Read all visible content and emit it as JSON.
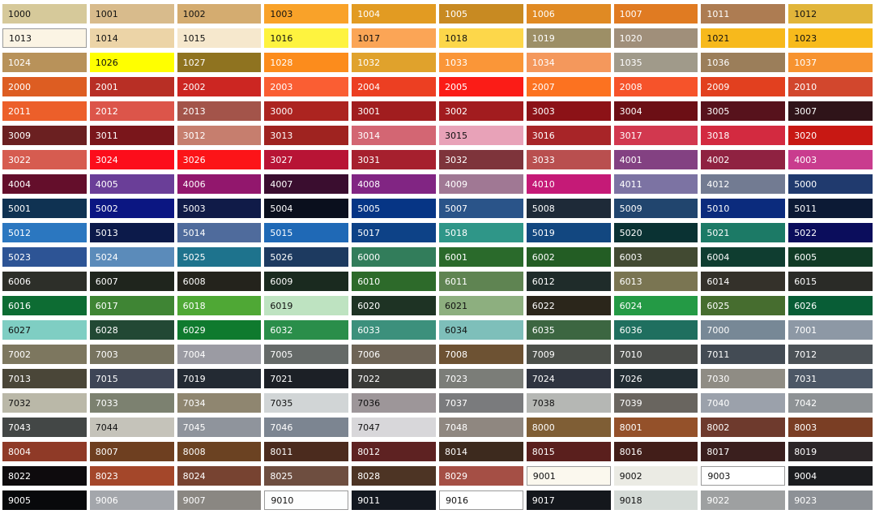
{
  "swatches": [
    {
      "code": "1000",
      "color": "#d6c99a",
      "text": "dark"
    },
    {
      "code": "1001",
      "color": "#d8bb8c",
      "text": "dark"
    },
    {
      "code": "1002",
      "color": "#d4ac70",
      "text": "dark"
    },
    {
      "code": "1003",
      "color": "#f9a229",
      "text": "dark"
    },
    {
      "code": "1004",
      "color": "#e29b22",
      "text": "light"
    },
    {
      "code": "1005",
      "color": "#c88a22",
      "text": "light"
    },
    {
      "code": "1006",
      "color": "#e08a23",
      "text": "light"
    },
    {
      "code": "1007",
      "color": "#e07b22",
      "text": "light"
    },
    {
      "code": "1011",
      "color": "#ad7c52",
      "text": "light"
    },
    {
      "code": "1012",
      "color": "#e1b53a",
      "text": "dark"
    },
    {
      "code": "1013",
      "color": "#fbf4e4",
      "text": "dark",
      "border": true
    },
    {
      "code": "1014",
      "color": "#ecd4a7",
      "text": "dark"
    },
    {
      "code": "1015",
      "color": "#f6e8cd",
      "text": "dark"
    },
    {
      "code": "1016",
      "color": "#fef33f",
      "text": "dark"
    },
    {
      "code": "1017",
      "color": "#fba556",
      "text": "dark"
    },
    {
      "code": "1018",
      "color": "#fdd74a",
      "text": "dark"
    },
    {
      "code": "1019",
      "color": "#9d8f66",
      "text": "light"
    },
    {
      "code": "1020",
      "color": "#a08f7a",
      "text": "light"
    },
    {
      "code": "1021",
      "color": "#f7b91c",
      "text": "dark"
    },
    {
      "code": "1023",
      "color": "#f8bb1c",
      "text": "dark"
    },
    {
      "code": "1024",
      "color": "#b8925a",
      "text": "light"
    },
    {
      "code": "1026",
      "color": "#ffff00",
      "text": "dark"
    },
    {
      "code": "1027",
      "color": "#8f7320",
      "text": "light"
    },
    {
      "code": "1028",
      "color": "#fc8c1c",
      "text": "light"
    },
    {
      "code": "1032",
      "color": "#e0a22c",
      "text": "light"
    },
    {
      "code": "1033",
      "color": "#fa9638",
      "text": "light"
    },
    {
      "code": "1034",
      "color": "#f4985c",
      "text": "light"
    },
    {
      "code": "1035",
      "color": "#a09a8a",
      "text": "light"
    },
    {
      "code": "1036",
      "color": "#9b7e5a",
      "text": "light"
    },
    {
      "code": "1037",
      "color": "#f79330",
      "text": "light"
    },
    {
      "code": "2000",
      "color": "#dd5d22",
      "text": "light"
    },
    {
      "code": "2001",
      "color": "#b82f25",
      "text": "light"
    },
    {
      "code": "2002",
      "color": "#cc2622",
      "text": "light"
    },
    {
      "code": "2003",
      "color": "#fa5e33",
      "text": "light"
    },
    {
      "code": "2004",
      "color": "#ec3f22",
      "text": "light"
    },
    {
      "code": "2005",
      "color": "#fb1c17",
      "text": "light"
    },
    {
      "code": "2007",
      "color": "#fc7220",
      "text": "light"
    },
    {
      "code": "2008",
      "color": "#f6532a",
      "text": "light"
    },
    {
      "code": "2009",
      "color": "#e2401f",
      "text": "light"
    },
    {
      "code": "2010",
      "color": "#d2472d",
      "text": "light"
    },
    {
      "code": "2011",
      "color": "#ec5f2a",
      "text": "light"
    },
    {
      "code": "2012",
      "color": "#dc554a",
      "text": "light"
    },
    {
      "code": "2013",
      "color": "#a3544a",
      "text": "light"
    },
    {
      "code": "3000",
      "color": "#ac2420",
      "text": "light"
    },
    {
      "code": "3001",
      "color": "#a11d1f",
      "text": "light"
    },
    {
      "code": "3002",
      "color": "#a21c1f",
      "text": "light"
    },
    {
      "code": "3003",
      "color": "#8c1217",
      "text": "light"
    },
    {
      "code": "3004",
      "color": "#6c0f15",
      "text": "light"
    },
    {
      "code": "3005",
      "color": "#57121c",
      "text": "light"
    },
    {
      "code": "3007",
      "color": "#2f1419",
      "text": "light"
    },
    {
      "code": "3009",
      "color": "#6b2021",
      "text": "light"
    },
    {
      "code": "3011",
      "color": "#7a161b",
      "text": "light"
    },
    {
      "code": "3012",
      "color": "#c67e6e",
      "text": "light"
    },
    {
      "code": "3013",
      "color": "#9f2320",
      "text": "light"
    },
    {
      "code": "3014",
      "color": "#d36673",
      "text": "light"
    },
    {
      "code": "3015",
      "color": "#e8a2b8",
      "text": "dark"
    },
    {
      "code": "3016",
      "color": "#a82528",
      "text": "light"
    },
    {
      "code": "3017",
      "color": "#d2384f",
      "text": "light"
    },
    {
      "code": "3018",
      "color": "#d32a40",
      "text": "light"
    },
    {
      "code": "3020",
      "color": "#c81813",
      "text": "light"
    },
    {
      "code": "3022",
      "color": "#d65c50",
      "text": "light"
    },
    {
      "code": "3024",
      "color": "#fc0d1b",
      "text": "light"
    },
    {
      "code": "3026",
      "color": "#fc1418",
      "text": "light"
    },
    {
      "code": "3027",
      "color": "#b81435",
      "text": "light"
    },
    {
      "code": "3031",
      "color": "#a6202e",
      "text": "light"
    },
    {
      "code": "3032",
      "color": "#7e343b",
      "text": "light"
    },
    {
      "code": "3033",
      "color": "#b94f4f",
      "text": "light"
    },
    {
      "code": "4001",
      "color": "#834182",
      "text": "light"
    },
    {
      "code": "4002",
      "color": "#8f2241",
      "text": "light"
    },
    {
      "code": "4003",
      "color": "#c93c8e",
      "text": "light"
    },
    {
      "code": "4004",
      "color": "#640e2b",
      "text": "light"
    },
    {
      "code": "4005",
      "color": "#6a3e98",
      "text": "light"
    },
    {
      "code": "4006",
      "color": "#92176d",
      "text": "light"
    },
    {
      "code": "4007",
      "color": "#3a0d2f",
      "text": "light"
    },
    {
      "code": "4008",
      "color": "#812583",
      "text": "light"
    },
    {
      "code": "4009",
      "color": "#a07894",
      "text": "light"
    },
    {
      "code": "4010",
      "color": "#c51a77",
      "text": "light"
    },
    {
      "code": "4011",
      "color": "#7c73a3",
      "text": "light"
    },
    {
      "code": "4012",
      "color": "#727b92",
      "text": "light"
    },
    {
      "code": "5000",
      "color": "#203a6e",
      "text": "light"
    },
    {
      "code": "5001",
      "color": "#0f3252",
      "text": "light"
    },
    {
      "code": "5002",
      "color": "#0b1682",
      "text": "light"
    },
    {
      "code": "5003",
      "color": "#101b48",
      "text": "light"
    },
    {
      "code": "5004",
      "color": "#0a0f1d",
      "text": "light"
    },
    {
      "code": "5005",
      "color": "#063585",
      "text": "light"
    },
    {
      "code": "5007",
      "color": "#2a5489",
      "text": "light"
    },
    {
      "code": "5008",
      "color": "#1e2a38",
      "text": "light"
    },
    {
      "code": "5009",
      "color": "#21456e",
      "text": "light"
    },
    {
      "code": "5010",
      "color": "#0b2b7d",
      "text": "light"
    },
    {
      "code": "5011",
      "color": "#0c1a35",
      "text": "light"
    },
    {
      "code": "5012",
      "color": "#2b77c0",
      "text": "light"
    },
    {
      "code": "5013",
      "color": "#0c1a4a",
      "text": "light"
    },
    {
      "code": "5014",
      "color": "#4f6b9c",
      "text": "light"
    },
    {
      "code": "5015",
      "color": "#1f69b6",
      "text": "light"
    },
    {
      "code": "5017",
      "color": "#0d4287",
      "text": "light"
    },
    {
      "code": "5018",
      "color": "#2f9688",
      "text": "light"
    },
    {
      "code": "5019",
      "color": "#124780",
      "text": "light"
    },
    {
      "code": "5020",
      "color": "#0a3233",
      "text": "light"
    },
    {
      "code": "5021",
      "color": "#1c7a66",
      "text": "light"
    },
    {
      "code": "5022",
      "color": "#0b0d5c",
      "text": "light"
    },
    {
      "code": "5023",
      "color": "#2d5495",
      "text": "light"
    },
    {
      "code": "5024",
      "color": "#5b8bba",
      "text": "light"
    },
    {
      "code": "5025",
      "color": "#1e738d",
      "text": "light"
    },
    {
      "code": "5026",
      "color": "#1d3a60",
      "text": "light"
    },
    {
      "code": "6000",
      "color": "#327d5b",
      "text": "light"
    },
    {
      "code": "6001",
      "color": "#2a6a2b",
      "text": "light"
    },
    {
      "code": "6002",
      "color": "#235d24",
      "text": "light"
    },
    {
      "code": "6003",
      "color": "#424a32",
      "text": "light"
    },
    {
      "code": "6004",
      "color": "#0f3d30",
      "text": "light"
    },
    {
      "code": "6005",
      "color": "#113b26",
      "text": "light"
    },
    {
      "code": "6006",
      "color": "#2d2f29",
      "text": "light"
    },
    {
      "code": "6007",
      "color": "#1f251d",
      "text": "light"
    },
    {
      "code": "6008",
      "color": "#24231c",
      "text": "light"
    },
    {
      "code": "6009",
      "color": "#1a2a1f",
      "text": "light"
    },
    {
      "code": "6010",
      "color": "#2d6a2a",
      "text": "light"
    },
    {
      "code": "6011",
      "color": "#5f8452",
      "text": "light"
    },
    {
      "code": "6012",
      "color": "#1f2c2a",
      "text": "light"
    },
    {
      "code": "6013",
      "color": "#7a7552",
      "text": "light"
    },
    {
      "code": "6014",
      "color": "#34312a",
      "text": "light"
    },
    {
      "code": "6015",
      "color": "#2a2b27",
      "text": "light"
    },
    {
      "code": "6016",
      "color": "#0d6c33",
      "text": "light"
    },
    {
      "code": "6017",
      "color": "#3f8534",
      "text": "light"
    },
    {
      "code": "6018",
      "color": "#4fa835",
      "text": "light"
    },
    {
      "code": "6019",
      "color": "#bee3c1",
      "text": "dark"
    },
    {
      "code": "6020",
      "color": "#1e3324",
      "text": "light"
    },
    {
      "code": "6021",
      "color": "#8daf7f",
      "text": "dark"
    },
    {
      "code": "6022",
      "color": "#2b261b",
      "text": "light"
    },
    {
      "code": "6024",
      "color": "#249a45",
      "text": "light"
    },
    {
      "code": "6025",
      "color": "#466d2f",
      "text": "light"
    },
    {
      "code": "6026",
      "color": "#085d36",
      "text": "light"
    },
    {
      "code": "6027",
      "color": "#7fcec3",
      "text": "dark"
    },
    {
      "code": "6028",
      "color": "#224834",
      "text": "light"
    },
    {
      "code": "6029",
      "color": "#0f7a2e",
      "text": "light"
    },
    {
      "code": "6032",
      "color": "#2a8e4a",
      "text": "light"
    },
    {
      "code": "6033",
      "color": "#3c907c",
      "text": "light"
    },
    {
      "code": "6034",
      "color": "#7ebfba",
      "text": "dark"
    },
    {
      "code": "6035",
      "color": "#3c6641",
      "text": "light"
    },
    {
      "code": "6036",
      "color": "#1f6f5f",
      "text": "light"
    },
    {
      "code": "7000",
      "color": "#778896",
      "text": "light"
    },
    {
      "code": "7001",
      "color": "#8d98a5",
      "text": "light"
    },
    {
      "code": "7002",
      "color": "#7d775f",
      "text": "light"
    },
    {
      "code": "7003",
      "color": "#77735f",
      "text": "light"
    },
    {
      "code": "7004",
      "color": "#9b9ba3",
      "text": "light"
    },
    {
      "code": "7005",
      "color": "#656a68",
      "text": "light"
    },
    {
      "code": "7006",
      "color": "#6e6456",
      "text": "light"
    },
    {
      "code": "7008",
      "color": "#6d5233",
      "text": "light"
    },
    {
      "code": "7009",
      "color": "#4c504a",
      "text": "light"
    },
    {
      "code": "7010",
      "color": "#4b4d4a",
      "text": "light"
    },
    {
      "code": "7011",
      "color": "#434b54",
      "text": "light"
    },
    {
      "code": "7012",
      "color": "#4c5257",
      "text": "light"
    },
    {
      "code": "7013",
      "color": "#4a4638",
      "text": "light"
    },
    {
      "code": "7015",
      "color": "#3e4556",
      "text": "light"
    },
    {
      "code": "7019",
      "color": "#232a33",
      "text": "light"
    },
    {
      "code": "7021",
      "color": "#1c2026",
      "text": "light"
    },
    {
      "code": "7022",
      "color": "#393a37",
      "text": "light"
    },
    {
      "code": "7023",
      "color": "#7b7d78",
      "text": "light"
    },
    {
      "code": "7024",
      "color": "#2f3440",
      "text": "light"
    },
    {
      "code": "7026",
      "color": "#222d33",
      "text": "light"
    },
    {
      "code": "7030",
      "color": "#8f8c84",
      "text": "light"
    },
    {
      "code": "7031",
      "color": "#4c5766",
      "text": "light"
    },
    {
      "code": "7032",
      "color": "#bab8a8",
      "text": "dark"
    },
    {
      "code": "7033",
      "color": "#7c8170",
      "text": "light"
    },
    {
      "code": "7034",
      "color": "#8f8670",
      "text": "light"
    },
    {
      "code": "7035",
      "color": "#d1d5d6",
      "text": "dark"
    },
    {
      "code": "7036",
      "color": "#9d9699",
      "text": "dark"
    },
    {
      "code": "7037",
      "color": "#7a7b7d",
      "text": "light"
    },
    {
      "code": "7038",
      "color": "#b5b7b4",
      "text": "dark"
    },
    {
      "code": "7039",
      "color": "#69655f",
      "text": "light"
    },
    {
      "code": "7040",
      "color": "#9ba1ab",
      "text": "light"
    },
    {
      "code": "7042",
      "color": "#8e9295",
      "text": "light"
    },
    {
      "code": "7043",
      "color": "#434746",
      "text": "light"
    },
    {
      "code": "7044",
      "color": "#c5c3ba",
      "text": "dark"
    },
    {
      "code": "7045",
      "color": "#8f949c",
      "text": "light"
    },
    {
      "code": "7046",
      "color": "#7c8591",
      "text": "light"
    },
    {
      "code": "7047",
      "color": "#d8d7da",
      "text": "dark"
    },
    {
      "code": "7048",
      "color": "#8f8780",
      "text": "light"
    },
    {
      "code": "8000",
      "color": "#7f5e35",
      "text": "light"
    },
    {
      "code": "8001",
      "color": "#94512a",
      "text": "light"
    },
    {
      "code": "8002",
      "color": "#6e3a2d",
      "text": "light"
    },
    {
      "code": "8003",
      "color": "#7a3e24",
      "text": "light"
    },
    {
      "code": "8004",
      "color": "#8f3a27",
      "text": "light"
    },
    {
      "code": "8007",
      "color": "#6e3f20",
      "text": "light"
    },
    {
      "code": "8008",
      "color": "#6b4222",
      "text": "light"
    },
    {
      "code": "8011",
      "color": "#4b2b1e",
      "text": "light"
    },
    {
      "code": "8012",
      "color": "#5e2222",
      "text": "light"
    },
    {
      "code": "8014",
      "color": "#3d2a1e",
      "text": "light"
    },
    {
      "code": "8015",
      "color": "#5a1f1d",
      "text": "light"
    },
    {
      "code": "8016",
      "color": "#421e19",
      "text": "light"
    },
    {
      "code": "8017",
      "color": "#3a1f1e",
      "text": "light"
    },
    {
      "code": "8019",
      "color": "#2c2628",
      "text": "light"
    },
    {
      "code": "8022",
      "color": "#0e0b0d",
      "text": "light"
    },
    {
      "code": "8023",
      "color": "#a4472a",
      "text": "light"
    },
    {
      "code": "8024",
      "color": "#774331",
      "text": "light"
    },
    {
      "code": "8025",
      "color": "#6e4e40",
      "text": "light"
    },
    {
      "code": "8028",
      "color": "#4d3424",
      "text": "light"
    },
    {
      "code": "8029",
      "color": "#a54f45",
      "text": "light"
    },
    {
      "code": "9001",
      "color": "#fbf8ee",
      "text": "dark",
      "border": true
    },
    {
      "code": "9002",
      "color": "#ebebe4",
      "text": "dark"
    },
    {
      "code": "9003",
      "color": "#ffffff",
      "text": "dark",
      "border": true
    },
    {
      "code": "9004",
      "color": "#1c1d20",
      "text": "light"
    },
    {
      "code": "9005",
      "color": "#08090b",
      "text": "light"
    },
    {
      "code": "9006",
      "color": "#a3a6ab",
      "text": "light"
    },
    {
      "code": "9007",
      "color": "#8a8782",
      "text": "light"
    },
    {
      "code": "9010",
      "color": "#fdfefe",
      "text": "dark",
      "border": true
    },
    {
      "code": "9011",
      "color": "#131820",
      "text": "light"
    },
    {
      "code": "9016",
      "color": "#ffffff",
      "text": "dark",
      "border": true
    },
    {
      "code": "9017",
      "color": "#14171c",
      "text": "light"
    },
    {
      "code": "9018",
      "color": "#d5dbd7",
      "text": "dark"
    },
    {
      "code": "9022",
      "color": "#9ea0a1",
      "text": "light"
    },
    {
      "code": "9023",
      "color": "#8d9196",
      "text": "light"
    }
  ]
}
